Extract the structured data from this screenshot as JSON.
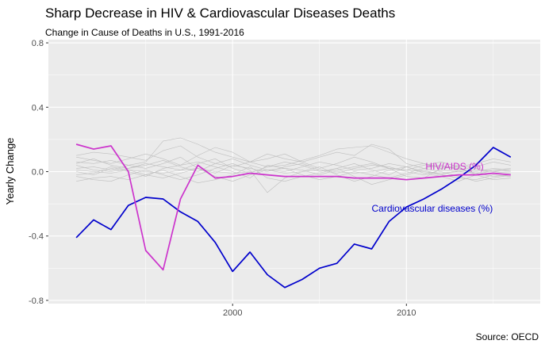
{
  "source_caption": "Source: OECD",
  "chart_data": {
    "type": "line",
    "title": "Sharp Decrease in HIV & Cardiovascular Diseases Deaths",
    "subtitle": "Change in Cause of Deaths in U.S., 1991-2016",
    "xlabel": "",
    "ylabel": "Yearly Change",
    "xlim": [
      1989.4,
      2017.7
    ],
    "ylim": [
      -0.82,
      0.82
    ],
    "x_ticks": [
      2000,
      2010
    ],
    "y_ticks": [
      -0.8,
      -0.4,
      0.0,
      0.4,
      0.8
    ],
    "y_tick_labels": [
      "-0.8",
      "-0.4",
      "0.0",
      "0.4",
      "0.8"
    ],
    "x_tick_labels": [
      "2000",
      "2010"
    ],
    "grid": true,
    "legend": "none",
    "colors": {
      "panel": "#ebebeb",
      "grid_major": "#ffffff",
      "background_series": "#bebebe",
      "hiv": "#cc33cc",
      "cardio": "#0000cc"
    },
    "x": [
      1991,
      1992,
      1993,
      1994,
      1995,
      1996,
      1997,
      1998,
      1999,
      2000,
      2001,
      2002,
      2003,
      2004,
      2005,
      2006,
      2007,
      2008,
      2009,
      2010,
      2011,
      2012,
      2013,
      2014,
      2015,
      2016
    ],
    "series": [
      {
        "name": "Cardiovascular diseases (%)",
        "color": "#0000cc",
        "highlight": true,
        "values": [
          -0.41,
          -0.3,
          -0.36,
          -0.21,
          -0.16,
          -0.17,
          -0.25,
          -0.31,
          -0.44,
          -0.62,
          -0.5,
          -0.64,
          -0.72,
          -0.67,
          -0.6,
          -0.57,
          -0.45,
          -0.48,
          -0.31,
          -0.22,
          -0.17,
          -0.11,
          -0.04,
          0.04,
          0.15,
          0.09
        ]
      },
      {
        "name": "HIV/AIDS (%)",
        "color": "#cc33cc",
        "highlight": true,
        "values": [
          0.17,
          0.14,
          0.16,
          0.0,
          -0.49,
          -0.61,
          -0.17,
          0.04,
          -0.04,
          -0.03,
          -0.01,
          -0.02,
          -0.03,
          -0.03,
          -0.03,
          -0.03,
          -0.04,
          -0.04,
          -0.04,
          -0.05,
          -0.04,
          -0.03,
          -0.02,
          -0.02,
          -0.01,
          -0.02
        ]
      },
      {
        "name": "",
        "color": "#bebebe",
        "values": [
          0.06,
          0.05,
          0.07,
          0.04,
          0.06,
          0.19,
          0.21,
          0.17,
          0.12,
          0.09,
          0.06,
          0.03,
          0.04,
          0.07,
          0.1,
          0.14,
          0.15,
          0.16,
          0.12,
          0.08,
          0.05,
          0.03,
          0.02,
          -0.01,
          -0.03,
          -0.02
        ]
      },
      {
        "name": "",
        "color": "#bebebe",
        "values": [
          0.1,
          0.12,
          0.11,
          0.09,
          0.07,
          0.13,
          0.16,
          0.09,
          0.05,
          0.03,
          0.06,
          0.11,
          0.08,
          0.06,
          0.09,
          0.12,
          0.1,
          0.17,
          0.14,
          0.05,
          0.02,
          0.04,
          0.01,
          0.0,
          0.02,
          0.01
        ]
      },
      {
        "name": "",
        "color": "#bebebe",
        "values": [
          -0.06,
          -0.04,
          -0.03,
          -0.05,
          -0.02,
          0.01,
          -0.03,
          -0.07,
          -0.05,
          -0.02,
          0.03,
          -0.04,
          -0.06,
          -0.03,
          -0.01,
          0.02,
          -0.03,
          -0.08,
          -0.05,
          -0.02,
          0.01,
          -0.02,
          -0.04,
          -0.05,
          -0.02,
          -0.03
        ]
      },
      {
        "name": "",
        "color": "#bebebe",
        "values": [
          0.02,
          0.03,
          0.01,
          0.04,
          0.02,
          0.05,
          0.09,
          0.02,
          -0.01,
          0.04,
          0.02,
          0.0,
          0.03,
          0.05,
          0.01,
          -0.01,
          0.02,
          0.04,
          0.03,
          0.0,
          -0.02,
          0.01,
          0.0,
          -0.01,
          0.01,
          0.0
        ]
      },
      {
        "name": "",
        "color": "#bebebe",
        "values": [
          0.0,
          -0.02,
          0.02,
          0.0,
          -0.03,
          0.02,
          0.04,
          0.06,
          0.03,
          0.0,
          -0.04,
          0.04,
          0.02,
          0.01,
          -0.02,
          0.01,
          0.03,
          0.05,
          0.02,
          -0.03,
          -0.04,
          0.02,
          0.03,
          -0.02,
          -0.05,
          -0.04
        ]
      },
      {
        "name": "",
        "color": "#bebebe",
        "values": [
          -0.03,
          -0.05,
          -0.06,
          -0.02,
          0.01,
          -0.02,
          -0.05,
          -0.02,
          0.02,
          0.05,
          0.01,
          -0.13,
          -0.04,
          0.0,
          0.03,
          -0.02,
          -0.06,
          -0.03,
          0.01,
          0.03,
          -0.01,
          -0.03,
          -0.06,
          -0.02,
          0.01,
          0.02
        ]
      },
      {
        "name": "",
        "color": "#bebebe",
        "values": [
          0.04,
          0.01,
          0.0,
          0.02,
          0.04,
          0.07,
          0.03,
          0.0,
          0.05,
          0.08,
          0.04,
          0.01,
          0.0,
          0.03,
          0.06,
          0.04,
          0.01,
          0.02,
          0.05,
          0.03,
          0.0,
          -0.02,
          0.01,
          0.03,
          0.06,
          0.04
        ]
      },
      {
        "name": "",
        "color": "#bebebe",
        "values": [
          0.01,
          0.0,
          -0.01,
          0.01,
          0.0,
          -0.01,
          0.01,
          0.02,
          0.0,
          -0.01,
          0.0,
          0.01,
          -0.01,
          0.0,
          0.01,
          0.0,
          -0.01,
          0.0,
          0.02,
          0.01,
          0.0,
          -0.01,
          0.0,
          0.01,
          0.0,
          -0.01
        ]
      },
      {
        "name": "",
        "color": "#bebebe",
        "values": [
          0.09,
          0.07,
          0.05,
          0.08,
          0.11,
          0.08,
          0.04,
          0.1,
          0.15,
          0.12,
          0.06,
          0.08,
          0.11,
          0.06,
          0.02,
          0.05,
          0.09,
          0.06,
          0.02,
          0.01,
          0.04,
          0.06,
          0.03,
          0.05,
          0.08,
          0.06
        ]
      },
      {
        "name": "",
        "color": "#bebebe",
        "values": [
          -0.02,
          -0.01,
          0.03,
          0.01,
          -0.02,
          -0.04,
          -0.01,
          0.02,
          -0.03,
          -0.06,
          -0.02,
          0.01,
          0.02,
          -0.02,
          -0.05,
          -0.03,
          0.0,
          -0.02,
          -0.04,
          -0.01,
          0.02,
          0.0,
          -0.03,
          -0.06,
          -0.04,
          -0.02
        ]
      },
      {
        "name": "",
        "color": "#bebebe",
        "values": [
          0.05,
          0.08,
          0.04,
          0.02,
          0.05,
          0.03,
          0.01,
          0.05,
          0.08,
          0.02,
          -0.01,
          0.03,
          0.06,
          0.04,
          0.0,
          0.02,
          0.05,
          0.01,
          -0.02,
          0.03,
          0.05,
          0.02,
          0.04,
          0.02,
          0.0,
          0.01
        ]
      }
    ]
  }
}
